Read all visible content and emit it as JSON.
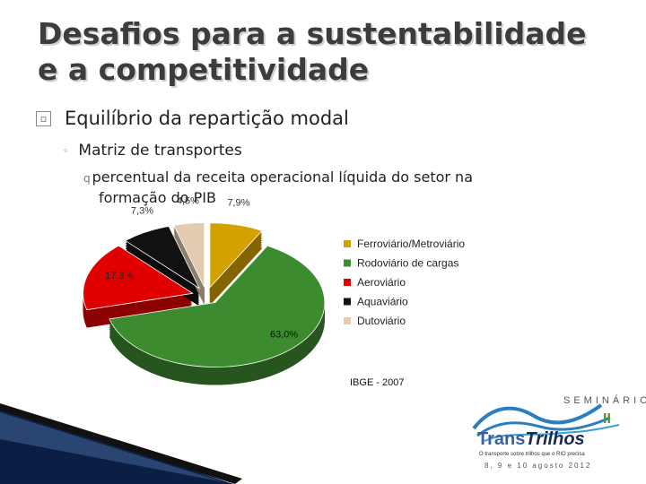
{
  "slide": {
    "title_line1": "Desafios para a sustentabilidade",
    "title_line2": "e a competitividade",
    "bullet1": "Equilíbrio da repartição modal",
    "bullet2": "Matriz de transportes",
    "bullet3_marker": "q",
    "bullet3_line1": "percentual da receita operacional líquida do setor na",
    "bullet3_line2": "formação do PIB"
  },
  "chart_data": {
    "type": "pie",
    "style": "3d-exploded",
    "slices": [
      {
        "label": "Ferroviário/Metroviário",
        "value": 7.9,
        "display": "7,9%",
        "color": "#d4a200"
      },
      {
        "label": "Rodoviário de cargas",
        "value": 63.0,
        "display": "63,0%",
        "color": "#3d8b2f"
      },
      {
        "label": "Aeroviário",
        "value": 17.3,
        "display": "17,3%",
        "color": "#e00000"
      },
      {
        "label": "Aquaviário",
        "value": 7.3,
        "display": "7,3%",
        "color": "#111111"
      },
      {
        "label": "Dutoviário",
        "value": 4.5,
        "display": "4,5%",
        "color": "#e2cbb0"
      }
    ],
    "legend_position": "right",
    "source": "IBGE - 2007"
  },
  "logo": {
    "seminario": "SEMINÁRIO",
    "numeral": "II",
    "trans": "Trans",
    "trilhos": "Trilhos",
    "tagline": "O transporte sobre trilhos que o RIO precisa",
    "dates": "8, 9 e 10 agosto 2012"
  }
}
